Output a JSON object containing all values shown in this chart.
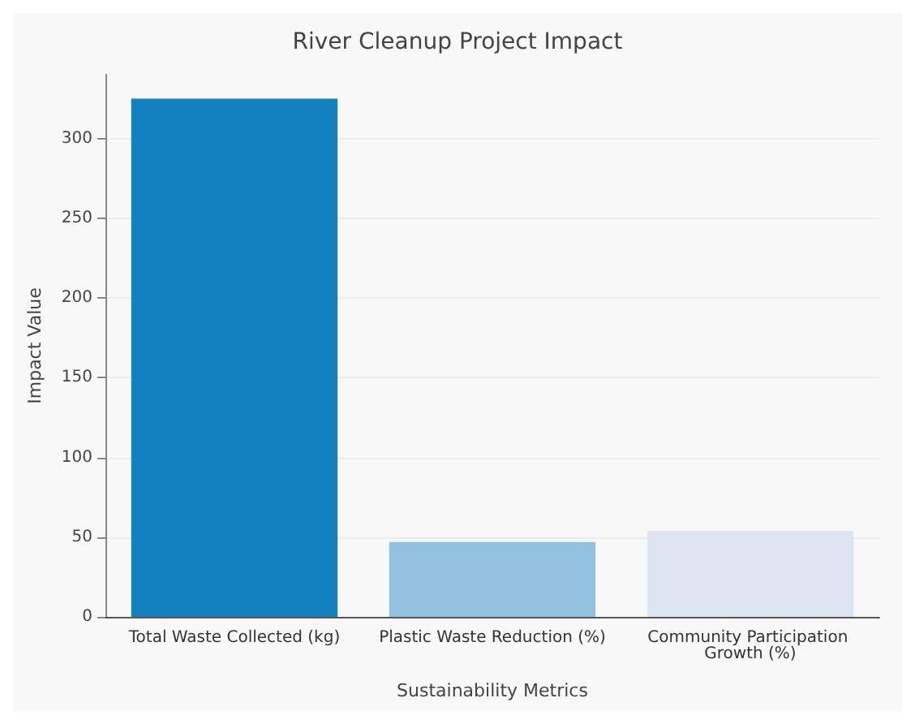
{
  "chart_data": {
    "type": "bar",
    "title": "River Cleanup Project Impact",
    "xlabel": "Sustainability Metrics",
    "ylabel": "Impact Value",
    "categories": [
      "Total Waste Collected (kg)",
      "Plastic Waste Reduction (%)",
      "Community Participation Growth (%)"
    ],
    "values": [
      325,
      47,
      54
    ],
    "colors": [
      "#1380c0",
      "#93c2e1",
      "#dde6f0"
    ],
    "ylim": [
      0,
      340
    ],
    "yticks": [
      0,
      50,
      100,
      150,
      200,
      250,
      300
    ],
    "grid": "y"
  }
}
